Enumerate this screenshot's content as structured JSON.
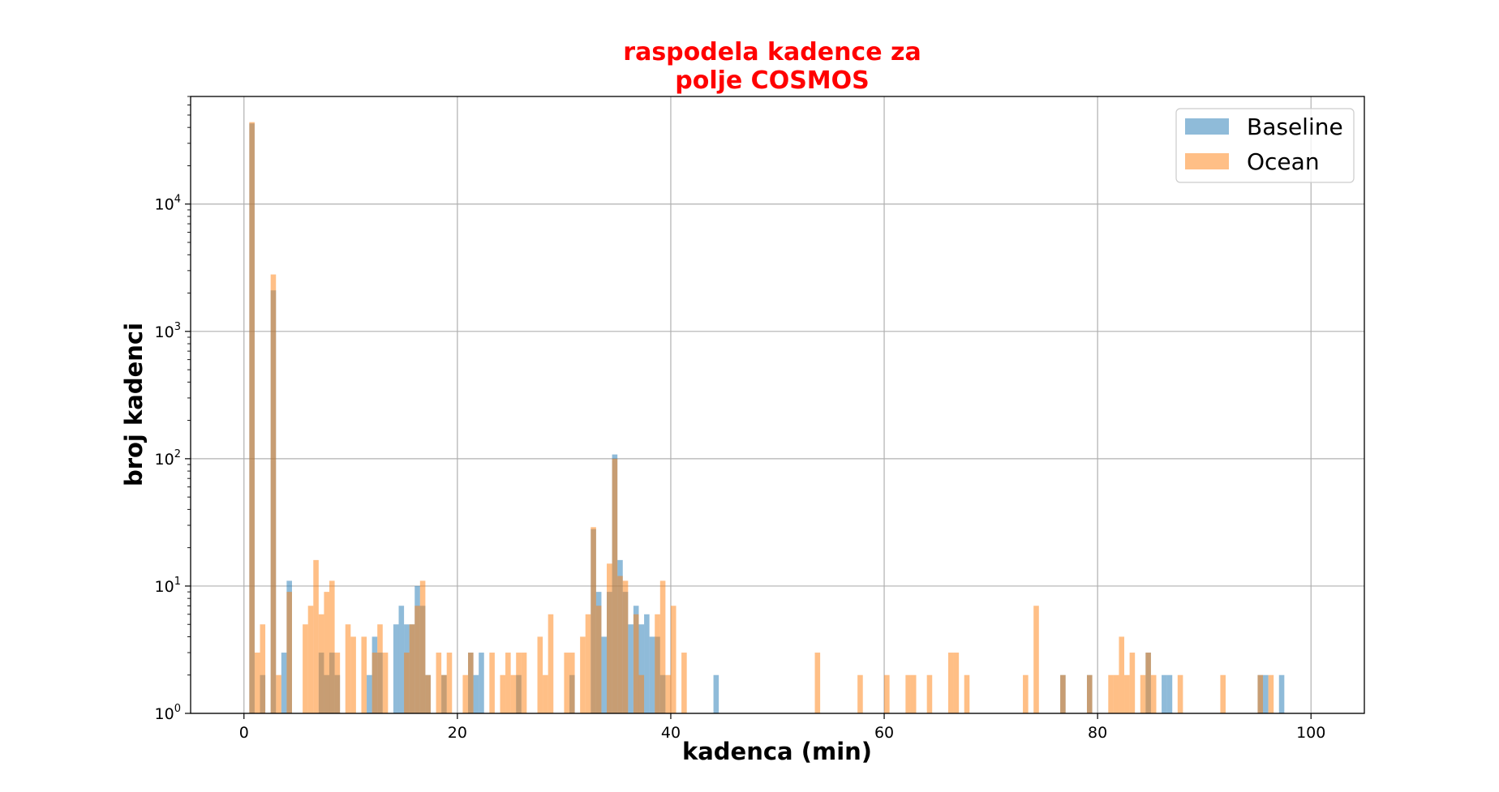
{
  "chart_data": {
    "type": "bar",
    "title": [
      "raspodela kadence za",
      "polje COSMOS"
    ],
    "xlabel": "kadenca (min)",
    "ylabel": "broj kadenci",
    "title_color": "#ff0000",
    "xlim": [
      -5,
      105
    ],
    "ylim": [
      1,
      70000
    ],
    "yscale": "log",
    "bin_width": 0.5,
    "xticks": [
      0,
      20,
      40,
      60,
      80,
      100
    ],
    "yticks": [
      {
        "value": 1,
        "label": "10",
        "exp": "0"
      },
      {
        "value": 10,
        "label": "10",
        "exp": "1"
      },
      {
        "value": 100,
        "label": "10",
        "exp": "2"
      },
      {
        "value": 1000,
        "label": "10",
        "exp": "3"
      },
      {
        "value": 10000,
        "label": "10",
        "exp": "4"
      }
    ],
    "grid": true,
    "legend_position": "top-right",
    "series": [
      {
        "name": "Baseline",
        "color": "#1f77b4",
        "opacity": 0.5,
        "bins": [
          [
            0.5,
            43000
          ],
          [
            1.5,
            2
          ],
          [
            2.5,
            2100
          ],
          [
            3.5,
            3
          ],
          [
            4.0,
            11
          ],
          [
            7.0,
            3
          ],
          [
            7.5,
            2
          ],
          [
            8.0,
            3
          ],
          [
            8.5,
            2
          ],
          [
            11.5,
            2
          ],
          [
            12.0,
            4
          ],
          [
            12.5,
            3
          ],
          [
            14.0,
            5
          ],
          [
            14.5,
            7
          ],
          [
            15.0,
            5
          ],
          [
            15.5,
            5
          ],
          [
            16.0,
            10
          ],
          [
            16.5,
            7
          ],
          [
            17.0,
            2
          ],
          [
            18.5,
            2
          ],
          [
            21.0,
            3
          ],
          [
            21.5,
            2
          ],
          [
            22.0,
            3
          ],
          [
            25.5,
            2
          ],
          [
            30.5,
            2
          ],
          [
            32.5,
            28
          ],
          [
            33.0,
            9
          ],
          [
            33.5,
            4
          ],
          [
            34.0,
            9
          ],
          [
            34.5,
            108
          ],
          [
            35.0,
            16
          ],
          [
            35.5,
            9
          ],
          [
            36.0,
            5
          ],
          [
            36.5,
            7
          ],
          [
            37.0,
            5
          ],
          [
            37.5,
            6
          ],
          [
            38.0,
            4
          ],
          [
            38.5,
            4
          ],
          [
            39.0,
            2
          ],
          [
            44.0,
            2
          ],
          [
            76.5,
            2
          ],
          [
            79.0,
            2
          ],
          [
            84.5,
            3
          ],
          [
            86.0,
            2
          ],
          [
            86.5,
            2
          ],
          [
            95.0,
            2
          ],
          [
            95.5,
            2
          ],
          [
            97.0,
            2
          ]
        ]
      },
      {
        "name": "Ocean",
        "color": "#ff7f0e",
        "opacity": 0.5,
        "bins": [
          [
            0.5,
            44000
          ],
          [
            1.0,
            3
          ],
          [
            1.5,
            5
          ],
          [
            2.5,
            2800
          ],
          [
            3.0,
            2
          ],
          [
            4.0,
            9
          ],
          [
            5.5,
            5
          ],
          [
            6.0,
            7
          ],
          [
            6.5,
            16
          ],
          [
            7.0,
            6
          ],
          [
            7.5,
            9
          ],
          [
            8.0,
            11
          ],
          [
            8.5,
            3
          ],
          [
            9.5,
            5
          ],
          [
            10.0,
            4
          ],
          [
            11.0,
            4
          ],
          [
            12.0,
            3
          ],
          [
            12.5,
            5
          ],
          [
            13.0,
            3
          ],
          [
            15.0,
            3
          ],
          [
            15.5,
            5
          ],
          [
            16.0,
            7
          ],
          [
            16.5,
            11
          ],
          [
            17.0,
            2
          ],
          [
            18.0,
            3
          ],
          [
            18.5,
            2
          ],
          [
            19.0,
            3
          ],
          [
            20.5,
            2
          ],
          [
            21.0,
            3
          ],
          [
            23.0,
            3
          ],
          [
            24.0,
            2
          ],
          [
            24.5,
            3
          ],
          [
            25.0,
            2
          ],
          [
            25.5,
            3
          ],
          [
            26.0,
            3
          ],
          [
            27.5,
            4
          ],
          [
            28.0,
            2
          ],
          [
            28.5,
            6
          ],
          [
            30.0,
            3
          ],
          [
            30.5,
            3
          ],
          [
            31.5,
            4
          ],
          [
            32.0,
            6
          ],
          [
            32.5,
            29
          ],
          [
            33.0,
            7
          ],
          [
            34.0,
            15
          ],
          [
            34.5,
            100
          ],
          [
            35.0,
            12
          ],
          [
            35.5,
            11
          ],
          [
            36.5,
            6
          ],
          [
            37.0,
            2
          ],
          [
            38.5,
            6
          ],
          [
            39.0,
            11
          ],
          [
            39.5,
            2
          ],
          [
            40.0,
            7
          ],
          [
            41.0,
            3
          ],
          [
            53.5,
            3
          ],
          [
            57.5,
            2
          ],
          [
            60.0,
            2
          ],
          [
            62.0,
            2
          ],
          [
            62.5,
            2
          ],
          [
            64.0,
            2
          ],
          [
            66.0,
            3
          ],
          [
            66.5,
            3
          ],
          [
            67.5,
            2
          ],
          [
            73.0,
            2
          ],
          [
            74.0,
            7
          ],
          [
            76.5,
            2
          ],
          [
            79.0,
            2
          ],
          [
            81.0,
            2
          ],
          [
            81.5,
            2
          ],
          [
            82.0,
            4
          ],
          [
            82.5,
            2
          ],
          [
            83.0,
            3
          ],
          [
            84.0,
            2
          ],
          [
            84.5,
            3
          ],
          [
            85.0,
            2
          ],
          [
            87.5,
            2
          ],
          [
            91.5,
            2
          ],
          [
            95.0,
            2
          ],
          [
            96.0,
            2
          ]
        ]
      }
    ]
  }
}
